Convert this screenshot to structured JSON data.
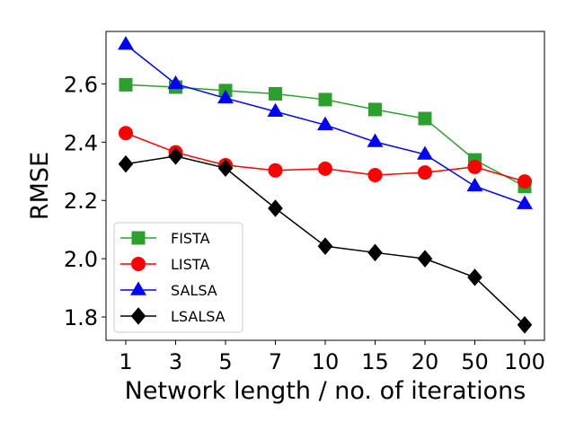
{
  "chart_data": {
    "type": "line",
    "title": "",
    "xlabel": "Network length / no. of iterations",
    "ylabel": "RMSE",
    "categories": [
      "1",
      "3",
      "5",
      "7",
      "10",
      "15",
      "20",
      "50",
      "100"
    ],
    "ylim": [
      1.72,
      2.78
    ],
    "yticks": [
      "1.8",
      "2.0",
      "2.2",
      "2.4",
      "2.6"
    ],
    "ytick_values": [
      1.8,
      2.0,
      2.2,
      2.4,
      2.6
    ],
    "grid": false,
    "legend_position": "lower-left",
    "series": [
      {
        "name": "FISTA",
        "color": "#2ca02c",
        "marker": "square",
        "values": [
          2.597,
          2.589,
          2.577,
          2.566,
          2.546,
          2.512,
          2.481,
          2.339,
          2.248
        ]
      },
      {
        "name": "LISTA",
        "color": "#ff0000",
        "marker": "circle",
        "values": [
          2.431,
          2.365,
          2.321,
          2.303,
          2.309,
          2.287,
          2.296,
          2.315,
          2.265
        ]
      },
      {
        "name": "SALSA",
        "color": "#0000ff",
        "marker": "triangle",
        "values": [
          2.735,
          2.6,
          2.551,
          2.505,
          2.459,
          2.401,
          2.358,
          2.249,
          2.188
        ]
      },
      {
        "name": "LSALSA",
        "color": "#000000",
        "marker": "diamond",
        "values": [
          2.325,
          2.352,
          2.311,
          2.173,
          2.043,
          2.021,
          2.0,
          1.936,
          1.773
        ]
      }
    ]
  }
}
